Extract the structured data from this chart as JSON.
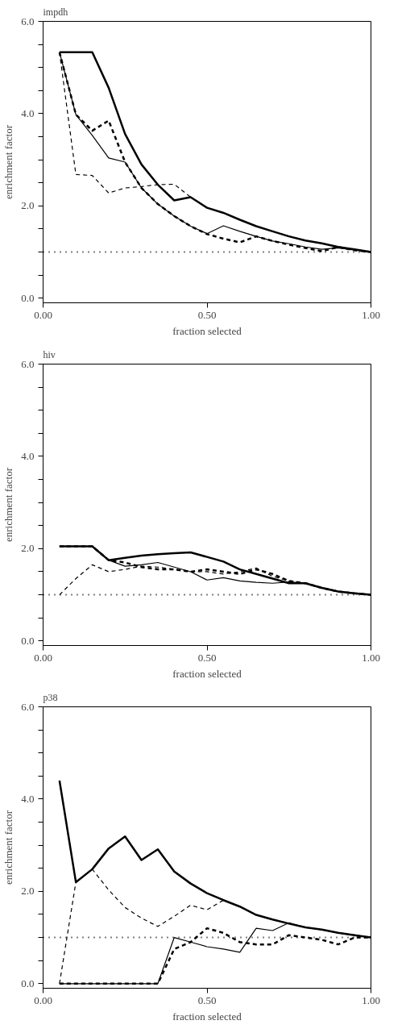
{
  "chart_data": [
    {
      "type": "line",
      "title": "impdh",
      "xlabel": "fraction selected",
      "ylabel": "enrichment factor",
      "xlim": [
        0,
        1.0
      ],
      "ylim": [
        -0.1,
        6.0
      ],
      "xticks": [
        {
          "value": 0,
          "label": "0.00"
        },
        {
          "value": 0.5,
          "label": "0.50"
        },
        {
          "value": 1.0,
          "label": "1.00"
        }
      ],
      "yticks": [
        {
          "value": 0,
          "label": "0.0"
        },
        {
          "value": 0.5,
          "label": null
        },
        {
          "value": 1,
          "label": null
        },
        {
          "value": 1.5,
          "label": null
        },
        {
          "value": 2,
          "label": "2.0"
        },
        {
          "value": 2.5,
          "label": null
        },
        {
          "value": 3,
          "label": null
        },
        {
          "value": 3.5,
          "label": null
        },
        {
          "value": 4,
          "label": "4.0"
        },
        {
          "value": 4.5,
          "label": null
        },
        {
          "value": 5,
          "label": null
        },
        {
          "value": 5.5,
          "label": null
        },
        {
          "value": 6,
          "label": "6.0"
        }
      ],
      "x": [
        0.05,
        0.1,
        0.15,
        0.2,
        0.25,
        0.3,
        0.35,
        0.4,
        0.45,
        0.5,
        0.55,
        0.6,
        0.65,
        0.7,
        0.75,
        0.8,
        0.85,
        0.9,
        0.95,
        1.0
      ],
      "grid": false,
      "marker": "none",
      "ref_lines": [
        {
          "axis": "y",
          "value": 1,
          "label": null,
          "color": "#000000",
          "line_style": "dotted"
        }
      ],
      "series": [
        {
          "color": "#000000",
          "line_style": "solid",
          "values": [
            5.33,
            5.33,
            5.33,
            4.56,
            3.56,
            2.9,
            2.46,
            2.12,
            2.19,
            1.96,
            1.85,
            1.7,
            1.56,
            1.45,
            1.34,
            1.25,
            1.19,
            1.11,
            1.06,
            1.0
          ]
        },
        {
          "color": "#000000",
          "line_style": "solid",
          "values": [
            5.33,
            3.98,
            3.53,
            3.04,
            2.95,
            2.39,
            2.04,
            1.78,
            1.56,
            1.4,
            1.57,
            1.45,
            1.34,
            1.24,
            1.18,
            1.11,
            1.06,
            1.09,
            1.04,
            1.0
          ]
        },
        {
          "color": "#000000",
          "line_style": "dashed",
          "values": [
            5.33,
            3.98,
            3.63,
            3.85,
            2.95,
            2.39,
            2.04,
            1.78,
            1.56,
            1.39,
            1.29,
            1.21,
            1.34,
            1.24,
            1.16,
            1.09,
            1.02,
            1.11,
            1.04,
            1.0
          ]
        },
        {
          "color": "#000000",
          "line_style": "dashed",
          "values": [
            5.33,
            2.68,
            2.66,
            2.28,
            2.39,
            2.42,
            2.46,
            2.47,
            2.19,
            1.96,
            1.85,
            1.7,
            1.56,
            1.45,
            1.34,
            1.25,
            1.19,
            1.11,
            1.06,
            1.0
          ]
        }
      ]
    },
    {
      "type": "line",
      "title": "hiv",
      "xlabel": "fraction selected",
      "ylabel": "enrichment factor",
      "xlim": [
        0,
        1.0
      ],
      "ylim": [
        -0.1,
        6.0
      ],
      "xticks": [
        {
          "value": 0,
          "label": "0.00"
        },
        {
          "value": 0.5,
          "label": "0.50"
        },
        {
          "value": 1.0,
          "label": "1.00"
        }
      ],
      "yticks": [
        {
          "value": 0,
          "label": "0.0"
        },
        {
          "value": 0.5,
          "label": null
        },
        {
          "value": 1,
          "label": null
        },
        {
          "value": 1.5,
          "label": null
        },
        {
          "value": 2,
          "label": "2.0"
        },
        {
          "value": 2.5,
          "label": null
        },
        {
          "value": 3,
          "label": null
        },
        {
          "value": 3.5,
          "label": null
        },
        {
          "value": 4,
          "label": "4.0"
        },
        {
          "value": 4.5,
          "label": null
        },
        {
          "value": 5,
          "label": null
        },
        {
          "value": 5.5,
          "label": null
        },
        {
          "value": 6,
          "label": "6.0"
        }
      ],
      "x": [
        0.05,
        0.1,
        0.15,
        0.2,
        0.25,
        0.3,
        0.35,
        0.4,
        0.45,
        0.5,
        0.55,
        0.6,
        0.65,
        0.7,
        0.75,
        0.8,
        0.85,
        0.9,
        0.95,
        1.0
      ],
      "grid": false,
      "marker": "none",
      "ref_lines": [
        {
          "axis": "y",
          "value": 1,
          "label": null,
          "color": "#000000",
          "line_style": "dotted"
        }
      ],
      "series": [
        {
          "color": "#000000",
          "line_style": "solid",
          "values": [
            2.05,
            2.05,
            2.05,
            1.75,
            1.8,
            1.85,
            1.88,
            1.9,
            1.92,
            1.82,
            1.72,
            1.55,
            1.45,
            1.35,
            1.25,
            1.25,
            1.15,
            1.07,
            1.03,
            1.0
          ]
        },
        {
          "color": "#000000",
          "line_style": "solid",
          "values": [
            2.05,
            2.05,
            2.05,
            1.75,
            1.62,
            1.65,
            1.7,
            1.6,
            1.5,
            1.32,
            1.37,
            1.3,
            1.27,
            1.25,
            1.28,
            1.25,
            1.15,
            1.07,
            1.03,
            1.0
          ]
        },
        {
          "color": "#000000",
          "line_style": "dashed",
          "values": [
            2.05,
            2.05,
            2.05,
            1.75,
            1.7,
            1.6,
            1.55,
            1.55,
            1.5,
            1.55,
            1.5,
            1.45,
            1.55,
            1.45,
            1.3,
            1.25,
            1.15,
            1.07,
            1.03,
            1.0
          ]
        },
        {
          "color": "#000000",
          "line_style": "dashed",
          "values": [
            1.0,
            1.35,
            1.65,
            1.5,
            1.55,
            1.62,
            1.6,
            1.55,
            1.5,
            1.5,
            1.45,
            1.5,
            1.58,
            1.4,
            1.3,
            1.25,
            1.15,
            1.07,
            1.03,
            1.0
          ]
        }
      ]
    },
    {
      "type": "line",
      "title": "p38",
      "xlabel": "fraction selected",
      "ylabel": "enrichment factor",
      "xlim": [
        0,
        1.0
      ],
      "ylim": [
        -0.1,
        6.0
      ],
      "xticks": [
        {
          "value": 0,
          "label": "0.00"
        },
        {
          "value": 0.5,
          "label": "0.50"
        },
        {
          "value": 1.0,
          "label": "1.00"
        }
      ],
      "yticks": [
        {
          "value": 0,
          "label": "0.0"
        },
        {
          "value": 0.5,
          "label": null
        },
        {
          "value": 1,
          "label": null
        },
        {
          "value": 1.5,
          "label": null
        },
        {
          "value": 2,
          "label": "2.0"
        },
        {
          "value": 2.5,
          "label": null
        },
        {
          "value": 3,
          "label": null
        },
        {
          "value": 3.5,
          "label": null
        },
        {
          "value": 4,
          "label": "4.0"
        },
        {
          "value": 4.5,
          "label": null
        },
        {
          "value": 5,
          "label": null
        },
        {
          "value": 5.5,
          "label": null
        },
        {
          "value": 6,
          "label": "6.0"
        }
      ],
      "x": [
        0.05,
        0.1,
        0.15,
        0.2,
        0.25,
        0.3,
        0.35,
        0.4,
        0.45,
        0.5,
        0.55,
        0.6,
        0.65,
        0.7,
        0.75,
        0.8,
        0.85,
        0.9,
        0.95,
        1.0
      ],
      "grid": false,
      "marker": "none",
      "ref_lines": [
        {
          "axis": "y",
          "value": 1,
          "label": null,
          "color": "#000000",
          "line_style": "dotted"
        }
      ],
      "series": [
        {
          "color": "#000000",
          "line_style": "solid",
          "values": [
            4.4,
            2.2,
            2.48,
            2.93,
            3.19,
            2.68,
            2.91,
            2.43,
            2.17,
            1.96,
            1.81,
            1.67,
            1.49,
            1.39,
            1.3,
            1.22,
            1.17,
            1.1,
            1.05,
            1.0
          ]
        },
        {
          "color": "#000000",
          "line_style": "solid",
          "values": [
            0.0,
            0.0,
            0.0,
            0.0,
            0.0,
            0.0,
            0.0,
            1.0,
            0.9,
            0.8,
            0.75,
            0.68,
            1.2,
            1.15,
            1.32,
            1.22,
            1.17,
            1.1,
            1.05,
            1.0
          ]
        },
        {
          "color": "#000000",
          "line_style": "dashed",
          "values": [
            0.0,
            0.0,
            0.0,
            0.0,
            0.0,
            0.0,
            0.0,
            0.75,
            0.9,
            1.2,
            1.1,
            0.9,
            0.85,
            0.85,
            1.05,
            1.0,
            0.95,
            0.85,
            1.0,
            1.0
          ]
        },
        {
          "color": "#000000",
          "line_style": "dashed",
          "values": [
            0.0,
            2.2,
            2.48,
            2.03,
            1.65,
            1.42,
            1.24,
            1.46,
            1.7,
            1.6,
            1.81,
            1.67,
            1.49,
            1.39,
            1.3,
            1.22,
            1.17,
            1.1,
            1.05,
            1.0
          ]
        }
      ]
    }
  ]
}
